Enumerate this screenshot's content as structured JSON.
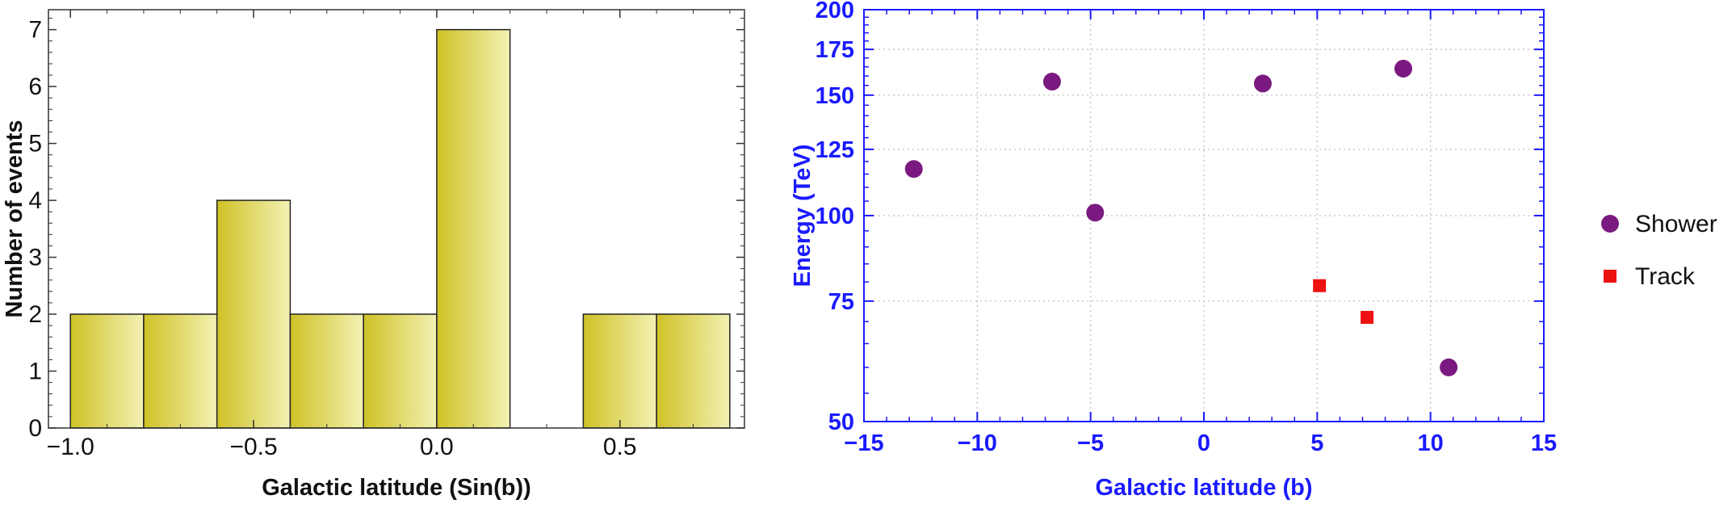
{
  "chart_data": [
    {
      "type": "bar",
      "subtype": "histogram",
      "xlabel": "Galactic latitude (Sin(b))",
      "ylabel": "Number of events",
      "bin_edges": [
        -1.0,
        -0.8,
        -0.6,
        -0.4,
        -0.2,
        0.0,
        0.2,
        0.4,
        0.6,
        0.8
      ],
      "values": [
        2,
        2,
        4,
        2,
        2,
        7,
        0,
        2,
        2
      ],
      "xlim": [
        -1.06,
        0.84
      ],
      "ylim": [
        0,
        7.35
      ],
      "x_ticks": [
        "-1.0",
        "-0.5",
        "0.0",
        "0.5"
      ],
      "x_tick_values": [
        -1.0,
        -0.5,
        0.0,
        0.5
      ],
      "y_ticks": [
        "0",
        "1",
        "2",
        "3",
        "4",
        "5",
        "6",
        "7"
      ],
      "grid": false,
      "colors": {
        "bar_dark": "#cfc226",
        "bar_light": "#f3f1b4",
        "edge": "#222222"
      }
    },
    {
      "type": "scatter",
      "xlabel": "Galactic latitude (b)",
      "ylabel": "Energy (TeV)",
      "xlim": [
        -15,
        15
      ],
      "ylim": [
        50,
        200
      ],
      "y_scale": "log",
      "x_ticks": [
        "-15",
        "-10",
        "-5",
        "0",
        "5",
        "10",
        "15"
      ],
      "x_tick_values": [
        -15,
        -10,
        -5,
        0,
        5,
        10,
        15
      ],
      "y_ticks": [
        "50",
        "75",
        "100",
        "125",
        "150",
        "175",
        "200"
      ],
      "y_tick_values": [
        50,
        75,
        100,
        125,
        150,
        175,
        200
      ],
      "grid": true,
      "legend_position": "right",
      "series": [
        {
          "name": "Shower",
          "marker": "circle",
          "color": "#7a1a80",
          "points": [
            {
              "x": -12.8,
              "y": 117
            },
            {
              "x": -6.7,
              "y": 157
            },
            {
              "x": -4.8,
              "y": 101
            },
            {
              "x": 2.6,
              "y": 156
            },
            {
              "x": 8.8,
              "y": 164
            },
            {
              "x": 10.8,
              "y": 60
            }
          ]
        },
        {
          "name": "Track",
          "marker": "square",
          "color": "#ee1111",
          "points": [
            {
              "x": 5.1,
              "y": 79
            },
            {
              "x": 7.2,
              "y": 71
            }
          ]
        }
      ],
      "colors": {
        "axis": "#1a1aff",
        "grid": "#bdbdbd"
      }
    }
  ]
}
